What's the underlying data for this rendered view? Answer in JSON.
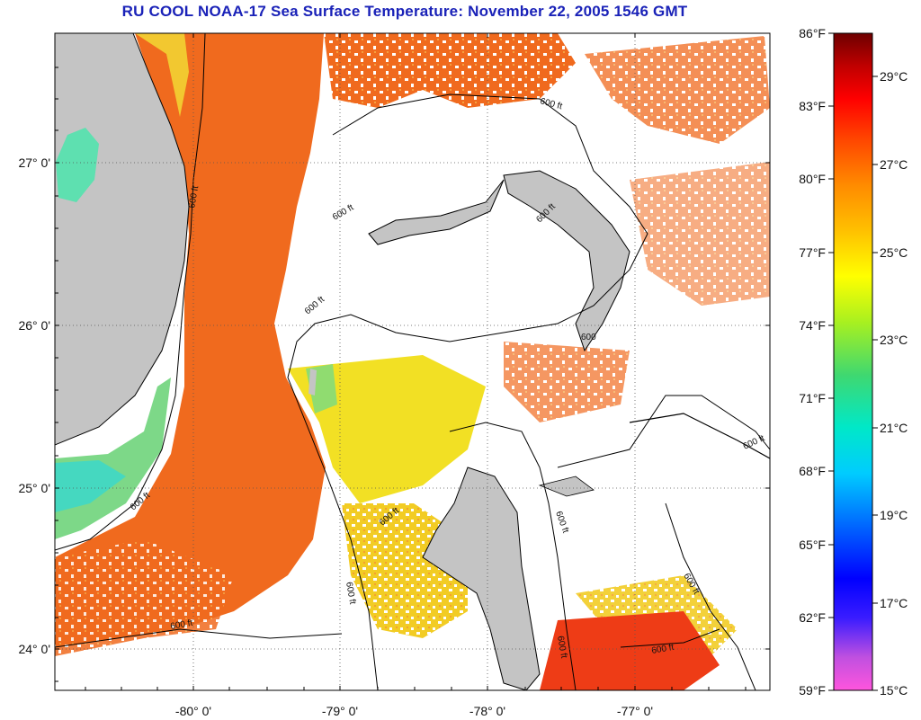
{
  "title": "RU COOL  NOAA-17  Sea Surface Temperature:  November 22, 2005 1546 GMT",
  "map": {
    "lat_labels": [
      "27° 0'",
      "26° 0'",
      "25° 0'",
      "24° 0'"
    ],
    "lon_labels": [
      "-80° 0'",
      "-79° 0'",
      "-78° 0'",
      "-77° 0'"
    ],
    "contour_label": "600 ft",
    "contour_label_short": "600"
  },
  "colorbar": {
    "fahrenheit_labels": [
      "86°F",
      "83°F",
      "80°F",
      "77°F",
      "74°F",
      "71°F",
      "68°F",
      "65°F",
      "62°F",
      "59°F"
    ],
    "celsius_labels": [
      "29°C",
      "27°C",
      "25°C",
      "23°C",
      "21°C",
      "19°C",
      "17°C",
      "15°C"
    ],
    "min_f": 59,
    "max_f": 86,
    "colors": [
      "#ff55cc",
      "#8a2be2",
      "#0000ff",
      "#00bfff",
      "#00e0c0",
      "#4fd45a",
      "#c8f000",
      "#ffff00",
      "#ff9900",
      "#ff3300",
      "#cc0000",
      "#7a0000"
    ]
  },
  "colors": {
    "land": "#c4c4c4",
    "warm_sst": "#f06a1e",
    "mid_sst": "#f0d020",
    "cool_sst": "#7de08a",
    "title": "#1a22b8"
  }
}
